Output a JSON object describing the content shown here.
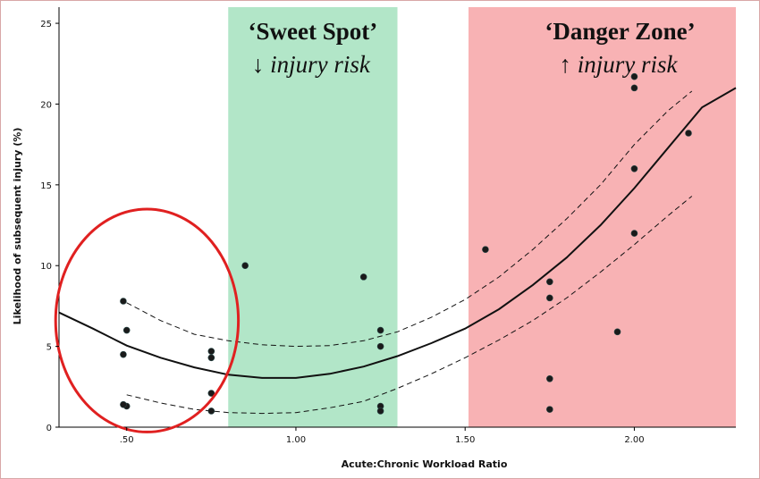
{
  "chart_data": {
    "type": "scatter",
    "title": "",
    "xlabel": "Acute:Chronic Workload Ratio",
    "ylabel": "Likelihood of subsequent injury (%)",
    "xlim": [
      0.3,
      2.3
    ],
    "ylim": [
      0,
      26
    ],
    "x_ticks": [
      {
        "value": 0.5,
        "label": ".50"
      },
      {
        "value": 1.0,
        "label": "1.00"
      },
      {
        "value": 1.5,
        "label": "1.50"
      },
      {
        "value": 2.0,
        "label": "2.00"
      }
    ],
    "y_ticks": [
      {
        "value": 0,
        "label": "0"
      },
      {
        "value": 5,
        "label": "5"
      },
      {
        "value": 10,
        "label": "10"
      },
      {
        "value": 15,
        "label": "15"
      },
      {
        "value": 20,
        "label": "20"
      },
      {
        "value": 25,
        "label": "25"
      }
    ],
    "zones": [
      {
        "id": "sweet-spot",
        "x_start": 0.8,
        "x_end": 1.3,
        "color": "#b2e6c8",
        "title": "‘Sweet Spot’",
        "subtitle": "↓ injury risk"
      },
      {
        "id": "danger-zone",
        "x_start": 1.51,
        "x_end": 2.3,
        "color": "#f8b2b4",
        "title": "‘Danger Zone’",
        "subtitle": "↑ injury risk"
      }
    ],
    "points": [
      {
        "x": 0.49,
        "y": 7.8
      },
      {
        "x": 0.5,
        "y": 6.0
      },
      {
        "x": 0.49,
        "y": 4.5
      },
      {
        "x": 0.5,
        "y": 1.3
      },
      {
        "x": 0.49,
        "y": 1.4
      },
      {
        "x": 0.75,
        "y": 4.7
      },
      {
        "x": 0.75,
        "y": 4.3
      },
      {
        "x": 0.75,
        "y": 2.1
      },
      {
        "x": 0.75,
        "y": 1.0
      },
      {
        "x": 0.85,
        "y": 10.0
      },
      {
        "x": 1.2,
        "y": 9.3
      },
      {
        "x": 1.25,
        "y": 6.0
      },
      {
        "x": 1.25,
        "y": 5.0
      },
      {
        "x": 1.25,
        "y": 1.3
      },
      {
        "x": 1.25,
        "y": 1.0
      },
      {
        "x": 1.56,
        "y": 11.0
      },
      {
        "x": 1.75,
        "y": 9.0
      },
      {
        "x": 1.75,
        "y": 8.0
      },
      {
        "x": 1.75,
        "y": 3.0
      },
      {
        "x": 1.75,
        "y": 1.1
      },
      {
        "x": 1.95,
        "y": 5.9
      },
      {
        "x": 2.0,
        "y": 21.7
      },
      {
        "x": 2.0,
        "y": 21.0
      },
      {
        "x": 2.0,
        "y": 16.0
      },
      {
        "x": 2.0,
        "y": 12.0
      },
      {
        "x": 2.16,
        "y": 18.2
      }
    ],
    "fit_curve": [
      {
        "x": 0.3,
        "y": 7.1
      },
      {
        "x": 0.4,
        "y": 6.1
      },
      {
        "x": 0.5,
        "y": 5.05
      },
      {
        "x": 0.6,
        "y": 4.3
      },
      {
        "x": 0.7,
        "y": 3.7
      },
      {
        "x": 0.8,
        "y": 3.25
      },
      {
        "x": 0.9,
        "y": 3.05
      },
      {
        "x": 1.0,
        "y": 3.05
      },
      {
        "x": 1.1,
        "y": 3.3
      },
      {
        "x": 1.2,
        "y": 3.75
      },
      {
        "x": 1.3,
        "y": 4.4
      },
      {
        "x": 1.4,
        "y": 5.2
      },
      {
        "x": 1.5,
        "y": 6.1
      },
      {
        "x": 1.6,
        "y": 7.3
      },
      {
        "x": 1.7,
        "y": 8.8
      },
      {
        "x": 1.8,
        "y": 10.5
      },
      {
        "x": 1.9,
        "y": 12.5
      },
      {
        "x": 2.0,
        "y": 14.8
      },
      {
        "x": 2.1,
        "y": 17.3
      },
      {
        "x": 2.2,
        "y": 19.8
      },
      {
        "x": 2.3,
        "y": 21.0
      }
    ],
    "ci_upper": [
      {
        "x": 0.5,
        "y": 7.7
      },
      {
        "x": 0.6,
        "y": 6.6
      },
      {
        "x": 0.7,
        "y": 5.75
      },
      {
        "x": 0.8,
        "y": 5.35
      },
      {
        "x": 0.9,
        "y": 5.1
      },
      {
        "x": 1.0,
        "y": 5.0
      },
      {
        "x": 1.1,
        "y": 5.05
      },
      {
        "x": 1.2,
        "y": 5.35
      },
      {
        "x": 1.3,
        "y": 5.9
      },
      {
        "x": 1.4,
        "y": 6.8
      },
      {
        "x": 1.5,
        "y": 7.9
      },
      {
        "x": 1.6,
        "y": 9.3
      },
      {
        "x": 1.7,
        "y": 11.0
      },
      {
        "x": 1.8,
        "y": 12.9
      },
      {
        "x": 1.9,
        "y": 15.0
      },
      {
        "x": 2.0,
        "y": 17.5
      },
      {
        "x": 2.1,
        "y": 19.6
      },
      {
        "x": 2.17,
        "y": 20.8
      }
    ],
    "ci_lower": [
      {
        "x": 0.5,
        "y": 2.0
      },
      {
        "x": 0.6,
        "y": 1.5
      },
      {
        "x": 0.7,
        "y": 1.1
      },
      {
        "x": 0.8,
        "y": 0.9
      },
      {
        "x": 0.9,
        "y": 0.85
      },
      {
        "x": 1.0,
        "y": 0.9
      },
      {
        "x": 1.1,
        "y": 1.2
      },
      {
        "x": 1.2,
        "y": 1.6
      },
      {
        "x": 1.3,
        "y": 2.4
      },
      {
        "x": 1.4,
        "y": 3.3
      },
      {
        "x": 1.5,
        "y": 4.3
      },
      {
        "x": 1.6,
        "y": 5.4
      },
      {
        "x": 1.7,
        "y": 6.6
      },
      {
        "x": 1.8,
        "y": 8.0
      },
      {
        "x": 1.9,
        "y": 9.6
      },
      {
        "x": 2.0,
        "y": 11.3
      },
      {
        "x": 2.1,
        "y": 13.1
      },
      {
        "x": 2.17,
        "y": 14.3
      }
    ],
    "highlight_circle": {
      "cx": 0.56,
      "cy": 6.6,
      "rx": 0.27,
      "ry": 6.9,
      "color": "#e02020"
    },
    "colors": {
      "axis": "#000000",
      "point": "#1a1a1a",
      "fit": "#111111"
    }
  }
}
